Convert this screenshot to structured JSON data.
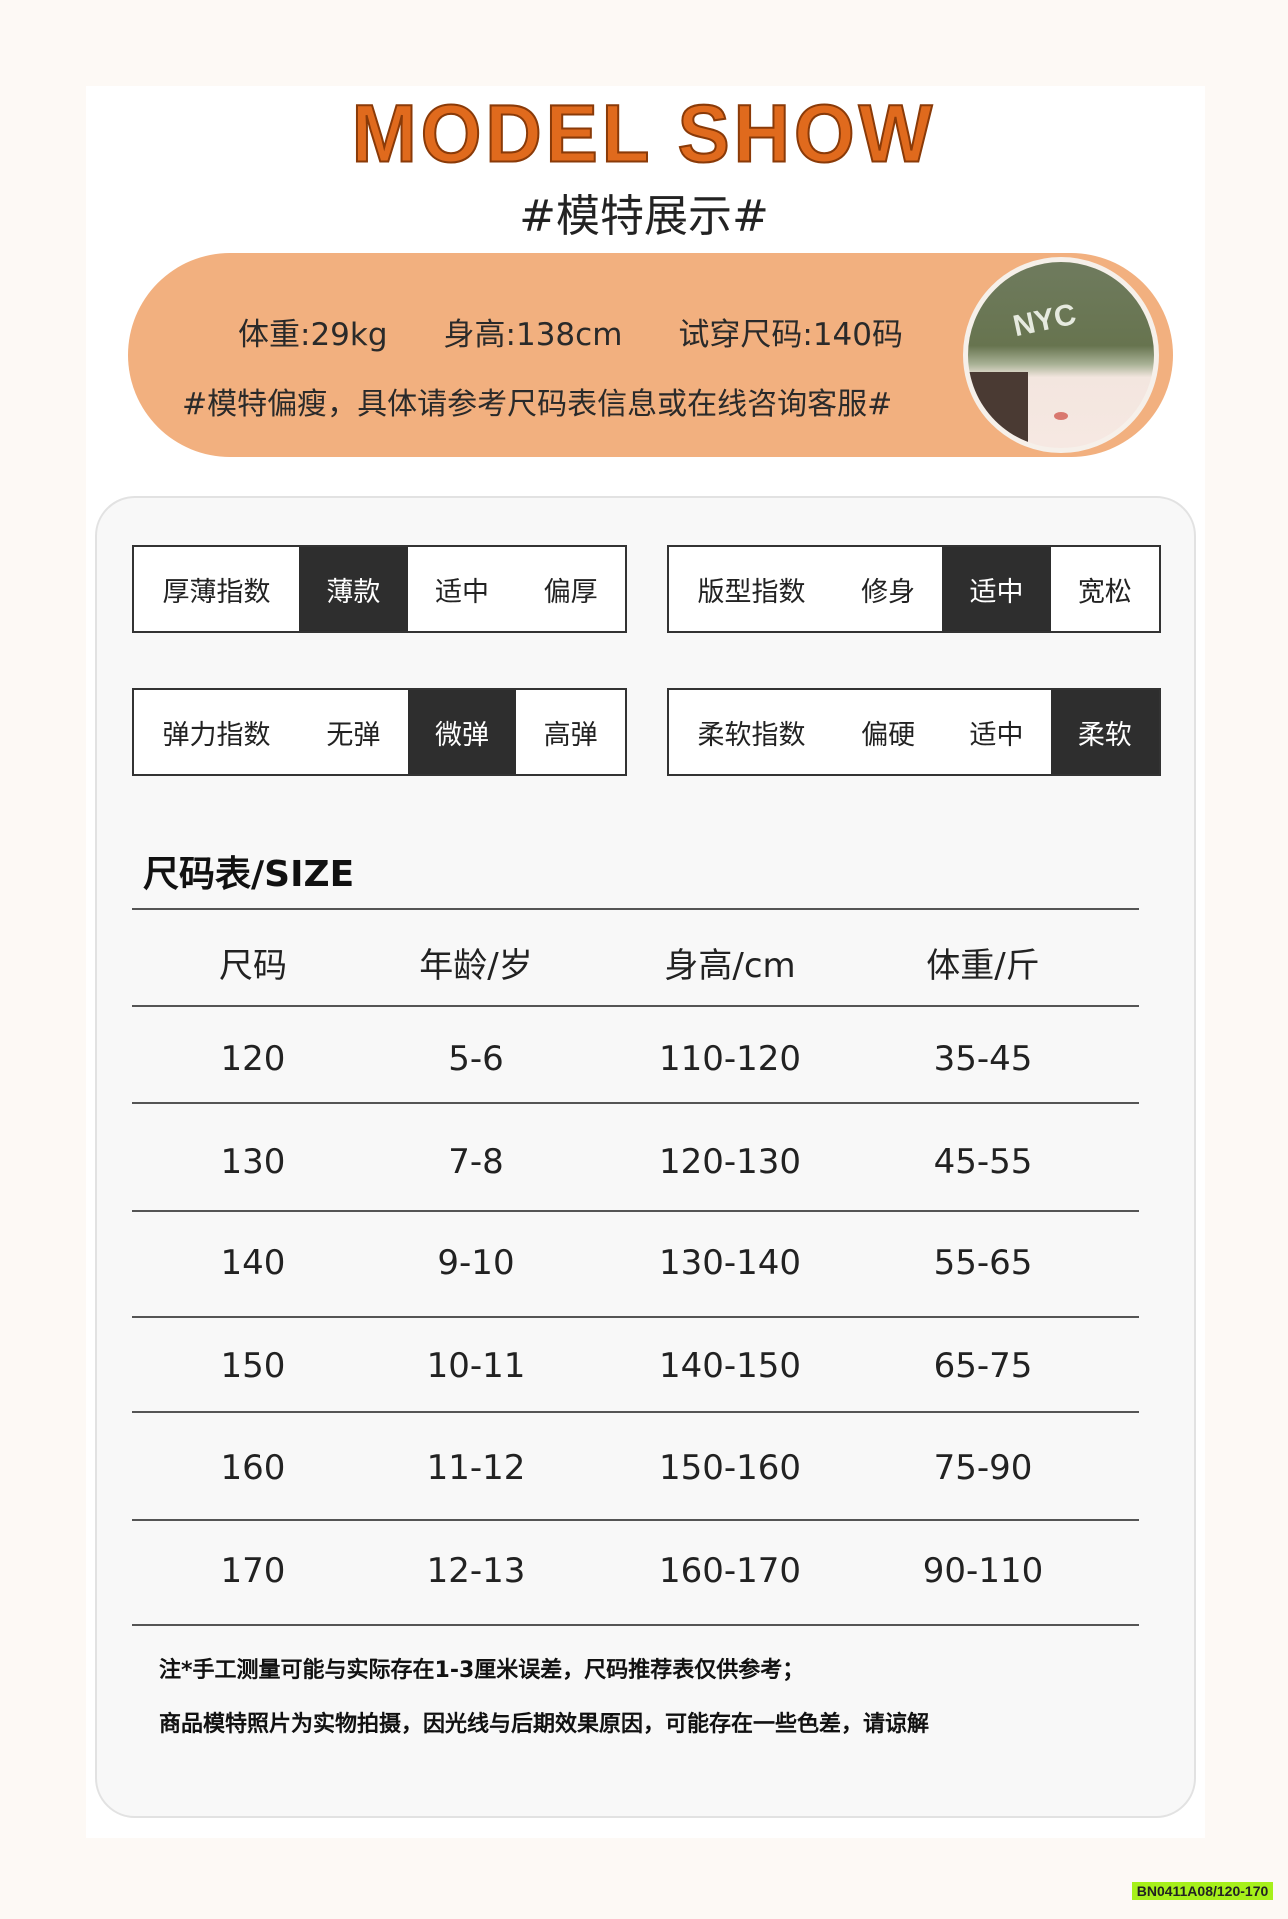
{
  "header": {
    "title": "MODEL SHOW",
    "subtitle": "#模特展示#"
  },
  "model": {
    "weight": "体重:29kg",
    "height": "身高:138cm",
    "size": "试穿尺码:140码",
    "note": "#模特偏瘦，具体请参考尺码表信息或在线咨询客服#",
    "photo_logo": "NYC"
  },
  "indices": [
    {
      "label": "厚薄指数",
      "options": [
        "薄款",
        "适中",
        "偏厚"
      ],
      "selected": 0
    },
    {
      "label": "版型指数",
      "options": [
        "修身",
        "适中",
        "宽松"
      ],
      "selected": 1
    },
    {
      "label": "弹力指数",
      "options": [
        "无弹",
        "微弹",
        "高弹"
      ],
      "selected": 1
    },
    {
      "label": "柔软指数",
      "options": [
        "偏硬",
        "适中",
        "柔软"
      ],
      "selected": 2
    }
  ],
  "size_table": {
    "title": "尺码表/SIZE",
    "headers": [
      "尺码",
      "年龄/岁",
      "身高/cm",
      "体重/斤"
    ],
    "rows": [
      [
        "120",
        "5-6",
        "110-120",
        "35-45"
      ],
      [
        "130",
        "7-8",
        "120-130",
        "45-55"
      ],
      [
        "140",
        "9-10",
        "130-140",
        "55-65"
      ],
      [
        "150",
        "10-11",
        "140-150",
        "65-75"
      ],
      [
        "160",
        "11-12",
        "150-160",
        "75-90"
      ],
      [
        "170",
        "12-13",
        "160-170",
        "90-110"
      ]
    ]
  },
  "notes": [
    "注*手工测量可能与实际存在1-3厘米误差，尺码推荐表仅供参考；",
    "商品模特照片为实物拍摄，因光线与后期效果原因，可能存在一些色差，请谅解"
  ],
  "tag": "BN0411A08/120-170",
  "colors": {
    "title": "#e06a1d",
    "pill": "#f2b07f",
    "selected": "#2e2e2e",
    "tag": "#a6f01a"
  }
}
